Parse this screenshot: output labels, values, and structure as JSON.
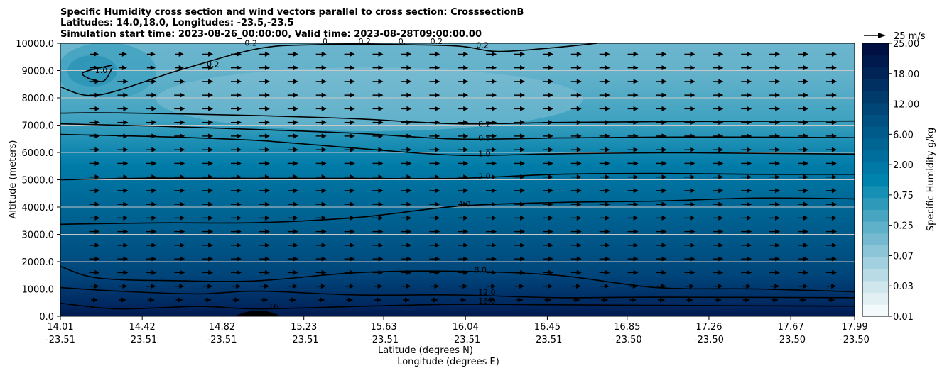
{
  "chart_data": {
    "type": "contour",
    "title_lines": [
      "Specific Humidity cross section and wind vectors parallel to cross section: CrosssectionB",
      "Latitudes: 14.0,18.0, Longitudes: -23.5,-23.5",
      "Simulation start time: 2023-08-26_00:00:00, Valid time: 2023-08-28T09:00:00.00"
    ],
    "ylabel": "Altitude (meters)",
    "xlabel_lat": "Latitude (degrees N)",
    "xlabel_lon": "Longitude (degrees E)",
    "ylim": [
      0,
      10000
    ],
    "y_ticks": [
      "0.0",
      "1000.0",
      "2000.0",
      "3000.0",
      "4000.0",
      "5000.0",
      "6000.0",
      "7000.0",
      "8000.0",
      "9000.0",
      "10000.0"
    ],
    "x_range": [
      14.01,
      17.99
    ],
    "x_ticks": [
      {
        "lat": "14.01",
        "lon": "-23.51"
      },
      {
        "lat": "14.42",
        "lon": "-23.51"
      },
      {
        "lat": "14.82",
        "lon": "-23.51"
      },
      {
        "lat": "15.23",
        "lon": "-23.51"
      },
      {
        "lat": "15.63",
        "lon": "-23.51"
      },
      {
        "lat": "16.04",
        "lon": "-23.51"
      },
      {
        "lat": "16.45",
        "lon": "-23.51"
      },
      {
        "lat": "16.85",
        "lon": "-23.50"
      },
      {
        "lat": "17.26",
        "lon": "-23.50"
      },
      {
        "lat": "17.67",
        "lon": "-23.50"
      },
      {
        "lat": "17.99",
        "lon": "-23.50"
      }
    ],
    "colorbar": {
      "label": "Specific Humidity g/kg",
      "tick_labels": [
        "0.01",
        "0.03",
        "0.07",
        "0.25",
        "0.75",
        "2.00",
        "6.00",
        "12.00",
        "18.00",
        "25.00"
      ],
      "colors": [
        "#f4fafb",
        "#e2f0f3",
        "#cee6ec",
        "#b8dbe5",
        "#a2d0de",
        "#8cc5d7",
        "#75bad0",
        "#5fb0c9",
        "#48a5c1",
        "#2f99ba",
        "#1690b4",
        "#0084ae",
        "#0079a6",
        "#006e9c",
        "#006593",
        "#005b8a",
        "#005181",
        "#004677",
        "#003b6c",
        "#002f61",
        "#002456",
        "#001a4d",
        "#001043"
      ]
    },
    "quiver_key": "25 m/s",
    "contour_labels": [
      {
        "text": "0.2",
        "x": 14.74,
        "y": 9160
      },
      {
        "text": "1.0",
        "x": 14.18,
        "y": 8940
      },
      {
        "text": "0.2",
        "x": 14.93,
        "y": 9930
      },
      {
        "text": "0.",
        "x": 15.32,
        "y": 10000
      },
      {
        "text": "0.2",
        "x": 15.5,
        "y": 10000
      },
      {
        "text": "0.",
        "x": 15.7,
        "y": 10000
      },
      {
        "text": "0.2",
        "x": 15.86,
        "y": 10000
      },
      {
        "text": "0.2",
        "x": 16.09,
        "y": 9860
      },
      {
        "text": "0.2",
        "x": 16.1,
        "y": 6980
      },
      {
        "text": "0.5",
        "x": 16.1,
        "y": 6460
      },
      {
        "text": "1.0",
        "x": 16.1,
        "y": 5880
      },
      {
        "text": "2.0",
        "x": 16.1,
        "y": 5050
      },
      {
        "text": "4.0",
        "x": 16.0,
        "y": 4040
      },
      {
        "text": "8.0",
        "x": 16.08,
        "y": 1620
      },
      {
        "text": "12.0",
        "x": 16.1,
        "y": 800
      },
      {
        "text": "16.0",
        "x": 16.1,
        "y": 490
      },
      {
        "text": "16",
        "x": 15.05,
        "y": 290
      }
    ],
    "contours": [
      {
        "level": "0.2",
        "points": [
          [
            14.01,
            7440
          ],
          [
            14.3,
            7450
          ],
          [
            15.0,
            7350
          ],
          [
            15.5,
            7230
          ],
          [
            16.0,
            7050
          ],
          [
            16.5,
            7100
          ],
          [
            17.0,
            7130
          ],
          [
            17.5,
            7140
          ],
          [
            17.99,
            7150
          ]
        ]
      },
      {
        "level": "0.5",
        "points": [
          [
            14.01,
            7050
          ],
          [
            14.5,
            6960
          ],
          [
            15.0,
            6840
          ],
          [
            15.5,
            6700
          ],
          [
            16.0,
            6490
          ],
          [
            16.5,
            6530
          ],
          [
            17.0,
            6560
          ],
          [
            17.5,
            6560
          ],
          [
            17.99,
            6540
          ]
        ]
      },
      {
        "level": "1.0",
        "points": [
          [
            14.01,
            6660
          ],
          [
            14.5,
            6580
          ],
          [
            15.0,
            6440
          ],
          [
            15.5,
            6150
          ],
          [
            16.0,
            5900
          ],
          [
            16.5,
            5950
          ],
          [
            17.0,
            5990
          ],
          [
            17.5,
            5970
          ],
          [
            17.99,
            5940
          ]
        ]
      },
      {
        "level": "2.0",
        "points": [
          [
            14.01,
            5000
          ],
          [
            14.5,
            5060
          ],
          [
            15.0,
            5050
          ],
          [
            15.5,
            5050
          ],
          [
            16.0,
            5050
          ],
          [
            16.5,
            5200
          ],
          [
            17.0,
            5230
          ],
          [
            17.5,
            5200
          ],
          [
            17.99,
            5200
          ]
        ]
      },
      {
        "level": "4.0",
        "points": [
          [
            14.01,
            3370
          ],
          [
            14.5,
            3420
          ],
          [
            15.0,
            3430
          ],
          [
            15.5,
            3620
          ],
          [
            16.0,
            4030
          ],
          [
            16.5,
            4170
          ],
          [
            17.0,
            4220
          ],
          [
            17.5,
            4330
          ],
          [
            17.99,
            4300
          ]
        ]
      },
      {
        "level": "8.0",
        "points": [
          [
            14.01,
            1830
          ],
          [
            14.2,
            1400
          ],
          [
            14.6,
            1300
          ],
          [
            15.0,
            1300
          ],
          [
            15.5,
            1600
          ],
          [
            16.0,
            1650
          ],
          [
            16.5,
            1500
          ],
          [
            17.0,
            1050
          ],
          [
            17.5,
            1000
          ],
          [
            17.99,
            900
          ]
        ]
      },
      {
        "level": "12.0",
        "points": [
          [
            14.01,
            1050
          ],
          [
            14.3,
            920
          ],
          [
            14.7,
            820
          ],
          [
            15.0,
            920
          ],
          [
            15.5,
            780
          ],
          [
            16.0,
            780
          ],
          [
            16.5,
            680
          ],
          [
            17.0,
            700
          ],
          [
            17.99,
            680
          ]
        ]
      },
      {
        "level": "16.0",
        "points": [
          [
            14.01,
            480
          ],
          [
            14.3,
            270
          ],
          [
            14.7,
            360
          ],
          [
            15.0,
            270
          ],
          [
            15.5,
            360
          ],
          [
            16.0,
            440
          ],
          [
            16.5,
            420
          ],
          [
            17.0,
            400
          ],
          [
            17.99,
            370
          ]
        ]
      },
      {
        "level": "0.2 upper",
        "points": [
          [
            14.01,
            8400
          ],
          [
            14.2,
            8100
          ],
          [
            14.6,
            9000
          ],
          [
            15.0,
            9800
          ],
          [
            15.3,
            9950
          ],
          [
            15.6,
            9960
          ],
          [
            16.0,
            9900
          ],
          [
            16.2,
            9700
          ],
          [
            16.5,
            9850
          ],
          [
            16.7,
            10000
          ]
        ]
      },
      {
        "level": "1.0 upper",
        "points": [
          [
            14.27,
            9100
          ],
          [
            14.22,
            8600
          ],
          [
            14.12,
            8900
          ],
          [
            14.27,
            9200
          ]
        ]
      }
    ],
    "wind": {
      "direction": "parallel, toward increasing latitude"
    }
  }
}
